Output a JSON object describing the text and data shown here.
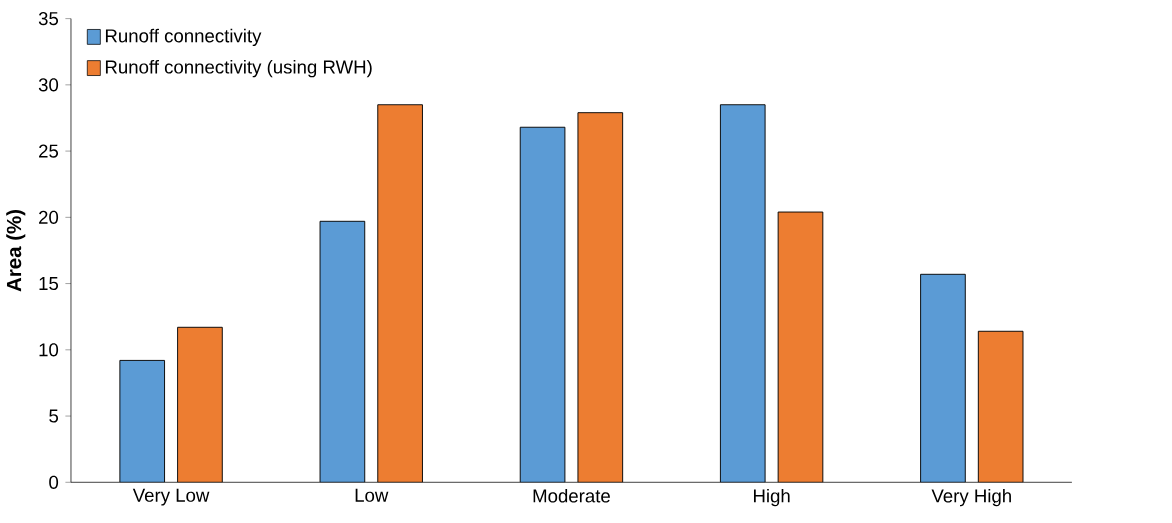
{
  "chart_data": {
    "type": "bar",
    "ylabel": "Area (%)",
    "categories": [
      "Very Low",
      "Low",
      "Moderate",
      "High",
      "Very High"
    ],
    "series": [
      {
        "name": "Runoff connectivity",
        "color": "#5b9bd5",
        "values": [
          9.2,
          19.7,
          26.8,
          28.5,
          15.7
        ]
      },
      {
        "name": "Runoff connectivity (using RWH)",
        "color": "#ed7d31",
        "values": [
          11.7,
          28.5,
          27.9,
          20.4,
          11.4
        ]
      }
    ],
    "ylim": [
      0,
      35
    ],
    "yticks": [
      0,
      5,
      10,
      15,
      20,
      25,
      30,
      35
    ],
    "grid": false,
    "legend": "top left"
  }
}
